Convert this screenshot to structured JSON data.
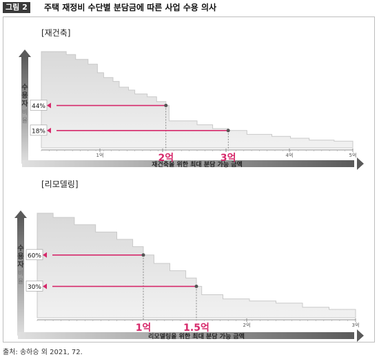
{
  "figure": {
    "label": "그림 2",
    "title": "주택 재정비 수단별 분담금에 따른 사업 수용 의사",
    "source": "출처: 송하승 외 2021, 72."
  },
  "colors": {
    "pointer": "#d6286a",
    "area": "#e4e4e4",
    "axis": "#6e6e6e"
  },
  "chart_data": [
    {
      "type": "area",
      "title": "[재건축]",
      "xlabel": "재건축을 위한 최대 분담 가능 금액",
      "ylabel_main": "수용자",
      "ylabel_sub": "비율",
      "x_tick_labels": [
        "1억",
        "2억",
        "3억",
        "4억",
        "5억"
      ],
      "xlim": [
        0,
        5
      ],
      "ylim": [
        0,
        100
      ],
      "steps": [
        [
          0.0,
          100
        ],
        [
          0.4,
          97
        ],
        [
          0.55,
          92
        ],
        [
          0.75,
          87
        ],
        [
          0.9,
          78
        ],
        [
          1.0,
          73
        ],
        [
          1.15,
          69
        ],
        [
          1.25,
          63
        ],
        [
          1.4,
          60
        ],
        [
          1.5,
          56
        ],
        [
          1.7,
          53
        ],
        [
          1.85,
          48
        ],
        [
          2.0,
          44
        ],
        [
          2.05,
          28
        ],
        [
          2.5,
          24
        ],
        [
          2.75,
          20
        ],
        [
          3.0,
          18
        ],
        [
          3.3,
          14
        ],
        [
          3.7,
          12
        ],
        [
          4.0,
          10
        ],
        [
          4.3,
          8
        ],
        [
          4.7,
          7
        ],
        [
          5.0,
          6
        ]
      ],
      "markers": [
        {
          "x": 2,
          "y": 44,
          "x_label": "2억",
          "y_label": "44%"
        },
        {
          "x": 3,
          "y": 18,
          "x_label": "3억",
          "y_label": "18%"
        }
      ]
    },
    {
      "type": "area",
      "title": "[리모델링]",
      "xlabel": "리모델링을 위한 최대 분담 가능 금액",
      "ylabel_main": "수용자",
      "ylabel_sub": "비율",
      "x_tick_labels": [
        "2억",
        "3억"
      ],
      "x_tick_values": [
        2,
        3
      ],
      "xlim": [
        0,
        3
      ],
      "ylim": [
        0,
        100
      ],
      "steps": [
        [
          0.0,
          100
        ],
        [
          0.15,
          96
        ],
        [
          0.35,
          89
        ],
        [
          0.55,
          82
        ],
        [
          0.75,
          75
        ],
        [
          0.9,
          68
        ],
        [
          1.0,
          60
        ],
        [
          1.1,
          52
        ],
        [
          1.25,
          45
        ],
        [
          1.4,
          38
        ],
        [
          1.5,
          30
        ],
        [
          1.55,
          22
        ],
        [
          1.75,
          18
        ],
        [
          2.0,
          16
        ],
        [
          2.25,
          14
        ],
        [
          2.5,
          10
        ],
        [
          2.75,
          8
        ],
        [
          3.0,
          6
        ]
      ],
      "markers": [
        {
          "x": 1,
          "y": 60,
          "x_label": "1억",
          "y_label": "60%"
        },
        {
          "x": 1.5,
          "y": 30,
          "x_label": "1.5억",
          "y_label": "30%"
        }
      ]
    }
  ]
}
